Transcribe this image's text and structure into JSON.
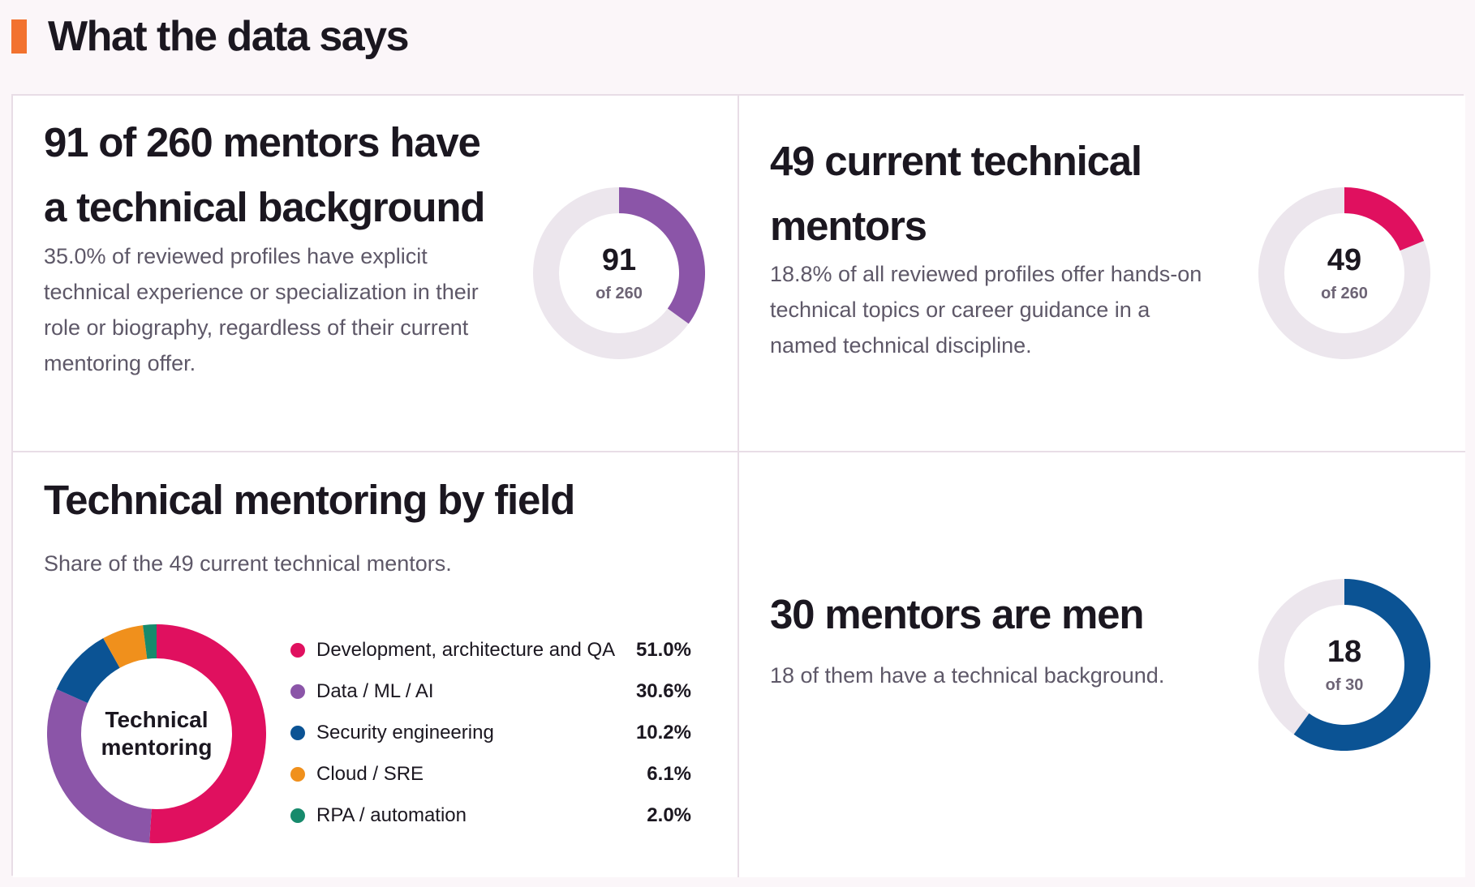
{
  "section": {
    "title": "What the data says",
    "accent": "#f2722f"
  },
  "cards": {
    "technical_background": {
      "title_line1": "91 of 260 mentors have",
      "title_line2": "a technical background",
      "text_line1": "35.0% of reviewed profiles have explicit",
      "text_line2": "technical experience or specialization in their",
      "text_line3": "role or biography, regardless of their current",
      "text_line4": "mentoring offer.",
      "donut": {
        "value": "91",
        "of_label": "of 260",
        "part": 91,
        "total": 260,
        "color": "#8b55a8"
      }
    },
    "current_technical": {
      "title_line1": "49 current technical",
      "title_line2": "mentors",
      "text_line1": "18.8% of all reviewed profiles offer hands-on",
      "text_line2": "technical topics or career guidance in a",
      "text_line3": "named technical discipline.",
      "donut": {
        "value": "49",
        "of_label": "of 260",
        "part": 49,
        "total": 260,
        "color": "#e0105f"
      }
    },
    "by_field": {
      "title": "Technical mentoring by field",
      "subtitle": "Share of the 49 current technical mentors.",
      "center_label": "Technical mentoring"
    },
    "men": {
      "title": "30 mentors are men",
      "text": "18 of them have a technical background.",
      "donut": {
        "value": "18",
        "of_label": "of 30",
        "part": 18,
        "total": 30,
        "color": "#0b5394"
      }
    }
  },
  "chart_data": {
    "type": "pie",
    "title": "Technical mentoring by field",
    "center_label": "Technical mentoring",
    "categories": [
      "Development, architecture and QA",
      "Data / ML / AI",
      "Security engineering",
      "Cloud / SRE",
      "RPA / automation"
    ],
    "values": [
      51.0,
      30.6,
      10.2,
      6.1,
      2.0
    ],
    "value_labels": [
      "51.0%",
      "30.6%",
      "10.2%",
      "6.1%",
      "2.0%"
    ],
    "colors": [
      "#e0105f",
      "#8b55a8",
      "#0b5394",
      "#f0901c",
      "#178a6c"
    ],
    "legend_position": "right"
  },
  "colors": {
    "track": "#ece6ed",
    "border": "#e8dde6"
  }
}
